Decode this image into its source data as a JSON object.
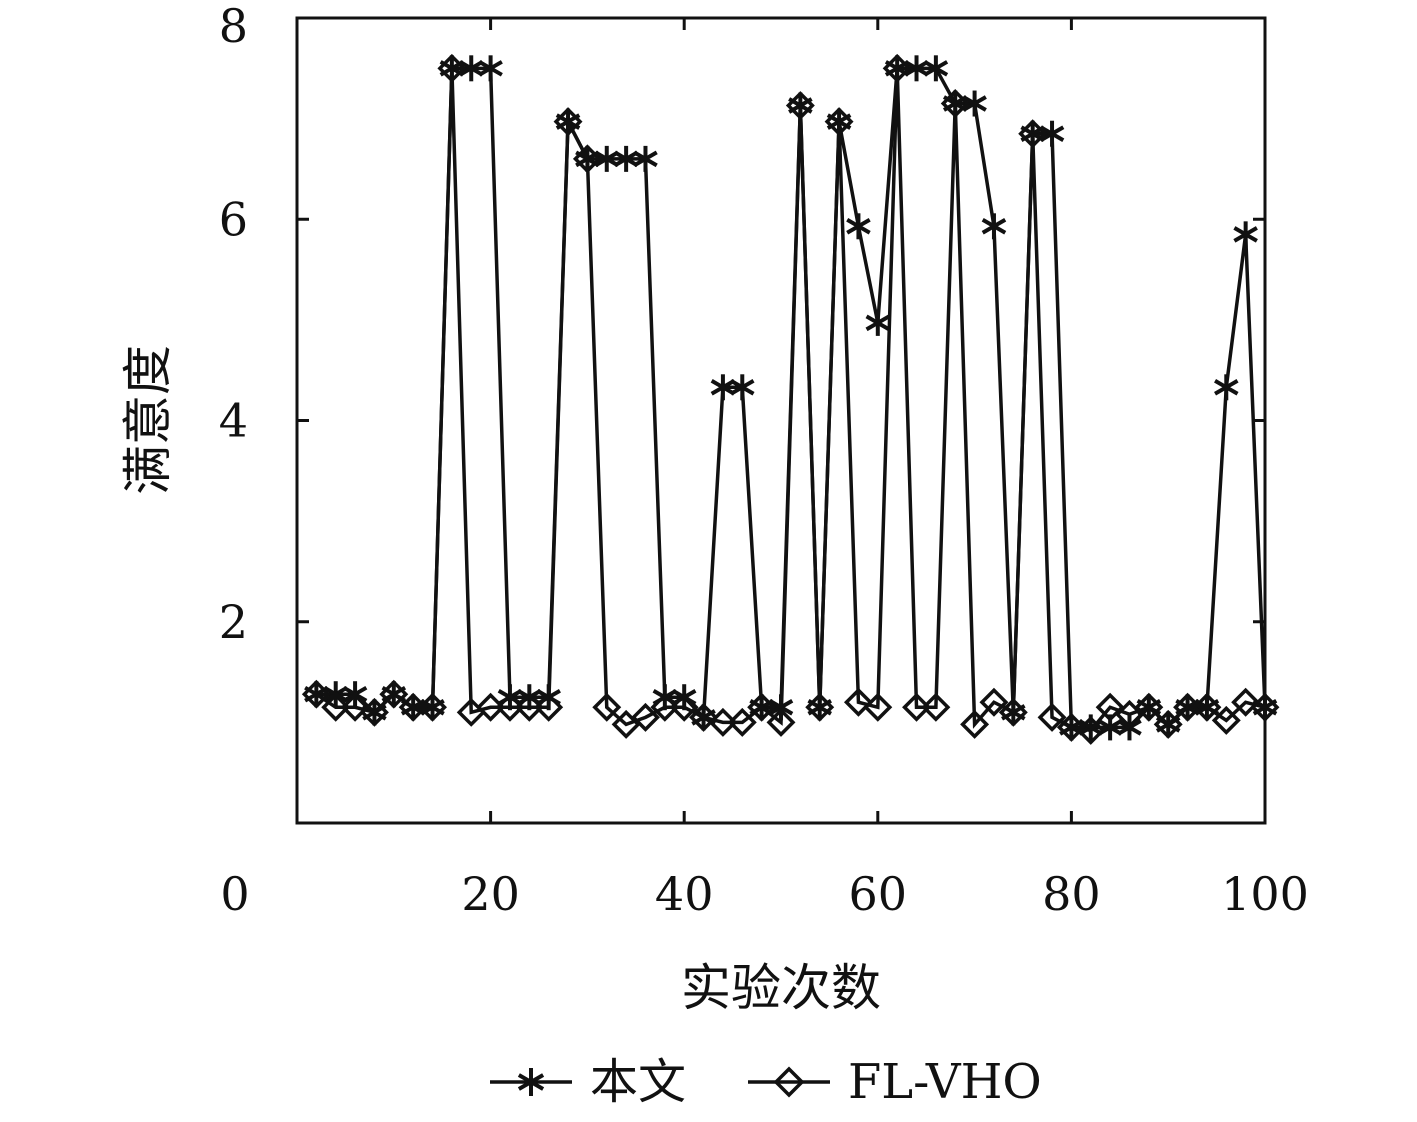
{
  "chart_data": {
    "type": "line",
    "xlabel": "实验次数",
    "ylabel": "满意度",
    "xlim": [
      0,
      100
    ],
    "ylim": [
      0,
      8
    ],
    "x_ticks": [
      0,
      20,
      40,
      60,
      80,
      100
    ],
    "y_ticks": [
      2,
      4,
      6,
      8
    ],
    "grid": false,
    "legend_position": "bottom",
    "x": [
      2,
      4,
      6,
      8,
      10,
      12,
      14,
      16,
      18,
      20,
      22,
      24,
      26,
      28,
      30,
      32,
      34,
      36,
      38,
      40,
      42,
      44,
      46,
      48,
      50,
      52,
      54,
      56,
      58,
      60,
      62,
      64,
      66,
      68,
      70,
      72,
      74,
      76,
      78,
      80,
      82,
      84,
      86,
      88,
      90,
      92,
      94,
      96,
      98,
      100
    ],
    "series": [
      {
        "name": "本文",
        "marker": "asterisk",
        "values": [
          1.28,
          1.28,
          1.28,
          1.1,
          1.28,
          1.15,
          1.15,
          7.5,
          7.5,
          7.5,
          1.25,
          1.25,
          1.25,
          6.97,
          6.6,
          6.6,
          6.6,
          6.6,
          1.25,
          1.25,
          1.05,
          4.33,
          4.33,
          1.15,
          1.15,
          7.13,
          1.15,
          6.97,
          5.93,
          4.97,
          7.5,
          7.5,
          7.5,
          7.15,
          7.15,
          5.93,
          1.1,
          6.85,
          6.85,
          0.95,
          0.95,
          0.95,
          0.95,
          1.15,
          0.98,
          1.15,
          1.15,
          4.33,
          5.85,
          1.15
        ]
      },
      {
        "name": "FL-VHO",
        "marker": "diamond",
        "values": [
          1.28,
          1.15,
          1.15,
          1.1,
          1.28,
          1.15,
          1.15,
          7.5,
          1.1,
          1.15,
          1.15,
          1.15,
          1.15,
          6.97,
          6.6,
          1.15,
          0.98,
          1.05,
          1.15,
          1.15,
          1.05,
          1.0,
          1.0,
          1.15,
          1.0,
          7.13,
          1.15,
          6.97,
          1.2,
          1.15,
          7.5,
          1.15,
          1.15,
          7.15,
          0.98,
          1.2,
          1.1,
          6.85,
          1.05,
          0.95,
          0.92,
          1.15,
          1.08,
          1.15,
          0.98,
          1.15,
          1.15,
          1.02,
          1.2,
          1.15
        ]
      }
    ]
  }
}
